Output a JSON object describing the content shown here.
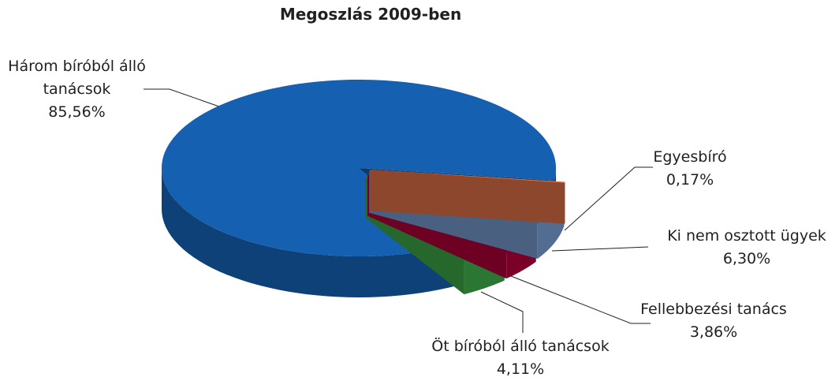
{
  "chart_data": {
    "type": "pie",
    "title": "Megoszlás 2009-ben",
    "categories": [
      "Egyesbíró",
      "Ki nem osztott ügyek",
      "Fellebbezési tanács",
      "Öt bíróból álló tanácsok",
      "Három bíróból álló tanácsok"
    ],
    "values": [
      0.17,
      6.3,
      3.86,
      4.11,
      85.56
    ],
    "value_labels": [
      "0,17%",
      "6,30%",
      "3,86%",
      "4,11%",
      "85,56%"
    ],
    "colors": [
      "#e9774b",
      "#7aa0d6",
      "#b5003a",
      "#3fae49",
      "#1560b0"
    ]
  }
}
